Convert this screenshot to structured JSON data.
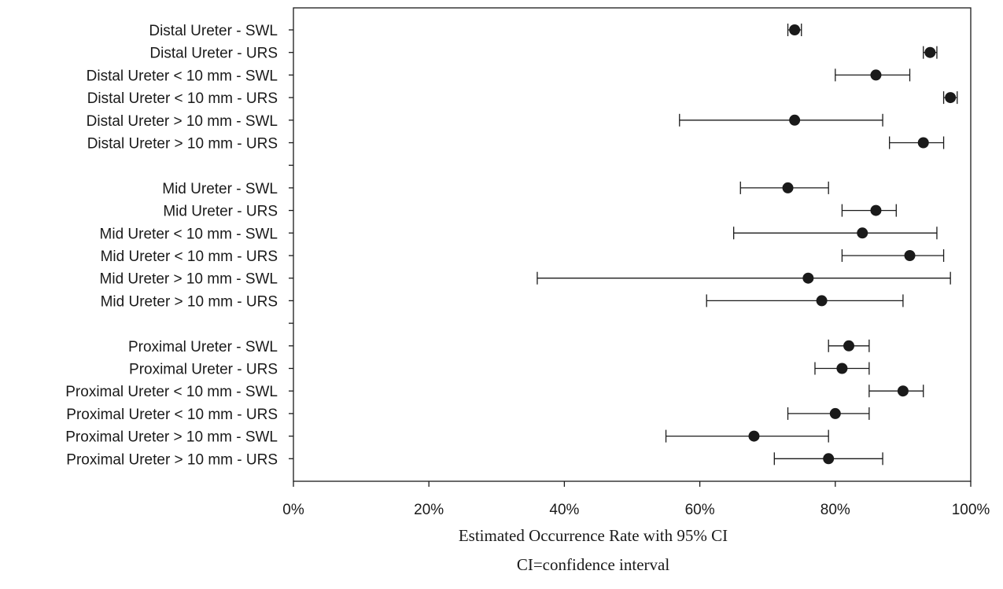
{
  "chart_data": {
    "type": "scatter",
    "title": "",
    "xlabel": "Estimated Occurrence Rate with 95% CI",
    "xlabel_note": "CI=confidence interval",
    "ylabel": "",
    "xlim": [
      0,
      100
    ],
    "x_ticks": [
      "0%",
      "20%",
      "40%",
      "60%",
      "80%",
      "100%"
    ],
    "grid": false,
    "legend": "none",
    "rows": [
      {
        "label": "Distal Ureter  - SWL",
        "est": 74,
        "lo": 73,
        "hi": 75
      },
      {
        "label": "Distal Ureter  - URS",
        "est": 94,
        "lo": 93,
        "hi": 95
      },
      {
        "label": "Distal Ureter  < 10 mm - SWL",
        "est": 86,
        "lo": 80,
        "hi": 91
      },
      {
        "label": "Distal Ureter  < 10 mm - URS",
        "est": 97,
        "lo": 96,
        "hi": 98
      },
      {
        "label": "Distal Ureter  > 10 mm - SWL",
        "est": 74,
        "lo": 57,
        "hi": 87
      },
      {
        "label": "Distal Ureter  > 10 mm - URS",
        "est": 93,
        "lo": 88,
        "hi": 96
      },
      {
        "label": "",
        "est": null,
        "lo": null,
        "hi": null
      },
      {
        "label": "Mid Ureter - SWL",
        "est": 73,
        "lo": 66,
        "hi": 79
      },
      {
        "label": "Mid Ureter - URS",
        "est": 86,
        "lo": 81,
        "hi": 89
      },
      {
        "label": "Mid Ureter < 10 mm - SWL",
        "est": 84,
        "lo": 65,
        "hi": 95
      },
      {
        "label": "Mid Ureter < 10 mm - URS",
        "est": 91,
        "lo": 81,
        "hi": 96
      },
      {
        "label": "Mid Ureter > 10 mm - SWL",
        "est": 76,
        "lo": 36,
        "hi": 97
      },
      {
        "label": "Mid Ureter > 10 mm - URS",
        "est": 78,
        "lo": 61,
        "hi": 90
      },
      {
        "label": "",
        "est": null,
        "lo": null,
        "hi": null
      },
      {
        "label": "Proximal Ureter - SWL",
        "est": 82,
        "lo": 79,
        "hi": 85
      },
      {
        "label": "Proximal Ureter - URS",
        "est": 81,
        "lo": 77,
        "hi": 85
      },
      {
        "label": "Proximal Ureter < 10 mm - SWL",
        "est": 90,
        "lo": 85,
        "hi": 93
      },
      {
        "label": "Proximal Ureter < 10 mm - URS",
        "est": 80,
        "lo": 73,
        "hi": 85
      },
      {
        "label": "Proximal Ureter > 10 mm - SWL",
        "est": 68,
        "lo": 55,
        "hi": 79
      },
      {
        "label": "Proximal Ureter > 10 mm - URS",
        "est": 79,
        "lo": 71,
        "hi": 87
      }
    ],
    "colors": {
      "ink": "#1a1a1a"
    }
  }
}
